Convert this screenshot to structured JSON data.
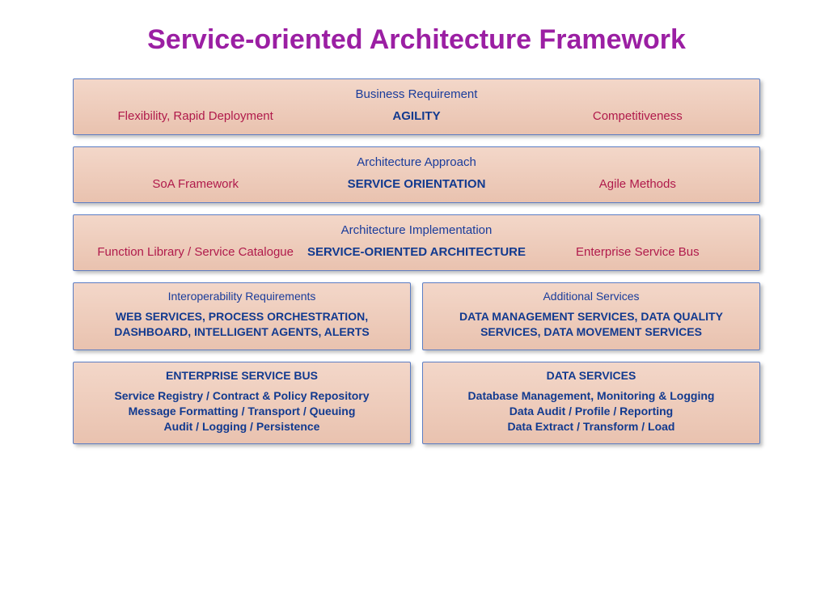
{
  "title": {
    "text": "Service-oriented Architecture Framework",
    "color": "#9b1fa3"
  },
  "palette": {
    "box_bg_top": "#f3d7c9",
    "box_bg_bottom": "#e9c2af",
    "box_border": "#5b7dc4",
    "text_header": "#1a3c9b",
    "text_accent": "#b01a4b",
    "text_bold": "#123a8f"
  },
  "layers": [
    {
      "header": "Business Requirement",
      "left": "Flexibility, Rapid Deployment",
      "mid": "AGILITY",
      "right": "Competitiveness"
    },
    {
      "header": "Architecture Approach",
      "left": "SoA Framework",
      "mid": "SERVICE ORIENTATION",
      "right": "Agile Methods"
    },
    {
      "header": "Architecture Implementation",
      "left": "Function Library / Service Catalogue",
      "mid": "SERVICE-ORIENTED ARCHITECTURE",
      "right": "Enterprise Service Bus"
    }
  ],
  "pair1": {
    "left": {
      "header": "Interoperability Requirements",
      "body": "WEB SERVICES, PROCESS ORCHESTRATION,\nDASHBOARD, INTELLIGENT AGENTS, ALERTS"
    },
    "right": {
      "header": "Additional Services",
      "body": "DATA MANAGEMENT SERVICES, DATA QUALITY\nSERVICES, DATA MOVEMENT SERVICES"
    }
  },
  "pair2": {
    "left": {
      "header": "ENTERPRISE SERVICE BUS",
      "body": "Service Registry / Contract & Policy Repository\nMessage Formatting / Transport / Queuing\nAudit / Logging / Persistence"
    },
    "right": {
      "header": "DATA SERVICES",
      "body": "Database Management, Monitoring & Logging\nData Audit / Profile / Reporting\nData Extract / Transform / Load"
    }
  }
}
